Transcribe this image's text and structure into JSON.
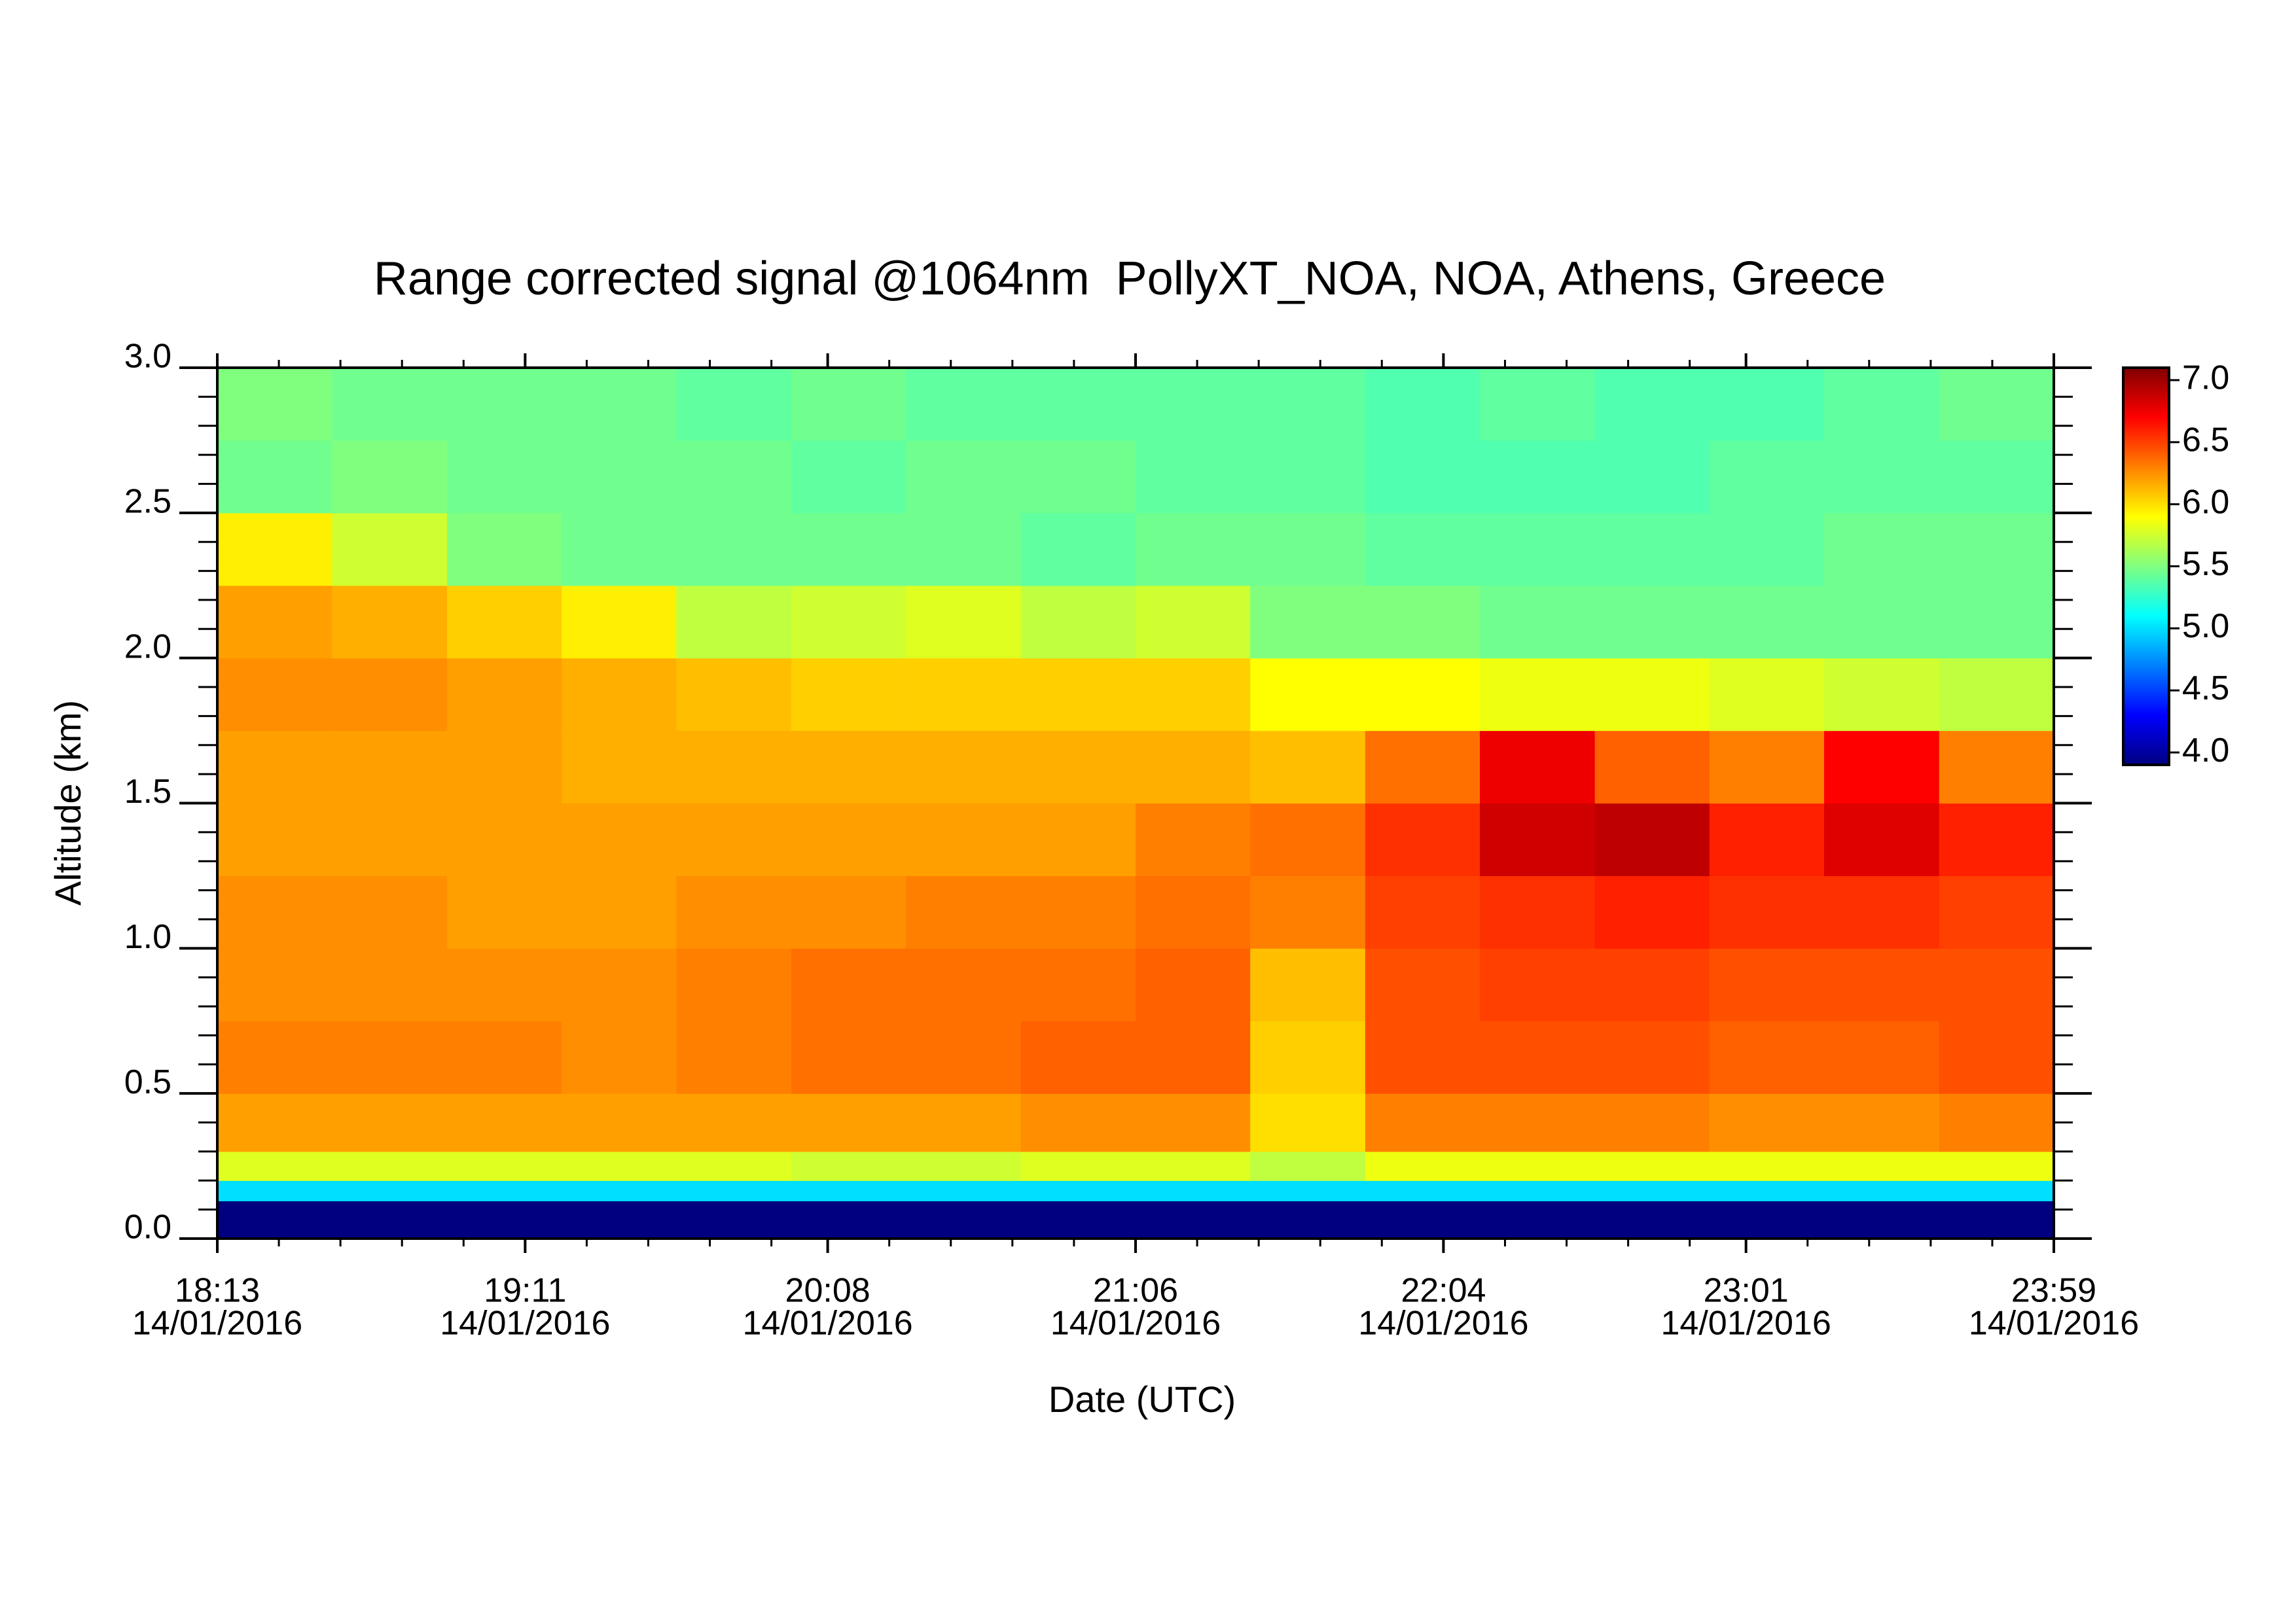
{
  "chart_data": {
    "type": "heatmap",
    "title": "Range corrected signal @1064nm  PollyXT_NOA, NOA, Athens, Greece",
    "x_label": "Date (UTC)",
    "y_label": "Altitude (km)",
    "colormap": "jet",
    "xlim": [
      18.2167,
      23.9833
    ],
    "xticks": [
      {
        "value": 18.2167,
        "label": "18:13",
        "date": "14/01/2016"
      },
      {
        "value": 19.1833,
        "label": "19:11",
        "date": "14/01/2016"
      },
      {
        "value": 20.1333,
        "label": "20:08",
        "date": "14/01/2016"
      },
      {
        "value": 21.1,
        "label": "21:06",
        "date": "14/01/2016"
      },
      {
        "value": 22.0667,
        "label": "22:04",
        "date": "14/01/2016"
      },
      {
        "value": 23.0167,
        "label": "23:01",
        "date": "14/01/2016"
      },
      {
        "value": 23.9833,
        "label": "23:59",
        "date": "14/01/2016"
      }
    ],
    "ylim": [
      0,
      3
    ],
    "yticks": [
      {
        "value": 0,
        "label": "0.0"
      },
      0.5,
      {
        "value": 1,
        "label": "1.0"
      },
      1.5,
      {
        "value": 2,
        "label": "2.0"
      },
      2.5,
      {
        "value": 3,
        "label": "3.0"
      }
    ],
    "zlim": [
      3.9,
      7.1
    ],
    "zticks": [
      {
        "value": 4,
        "label": "4.0"
      },
      4.5,
      {
        "value": 5,
        "label": "5.0"
      },
      5.5,
      {
        "value": 6,
        "label": "6.0"
      },
      6.5,
      {
        "value": 7,
        "label": "7.0"
      }
    ],
    "xbins": [
      18.2167,
      18.577,
      18.938,
      19.298,
      19.658,
      20.019,
      20.379,
      20.74,
      21.1,
      21.46,
      21.821,
      22.181,
      22.542,
      22.902,
      23.262,
      23.623,
      23.9833
    ],
    "ybins": [
      0,
      0.13,
      0.2,
      0.3,
      0.5,
      0.75,
      1.0,
      1.25,
      1.5,
      1.75,
      2.0,
      2.25,
      2.5,
      2.75,
      3.0
    ],
    "z": [
      [
        3.9,
        3.9,
        3.9,
        3.9,
        3.9,
        3.9,
        3.9,
        3.9,
        3.9,
        3.9,
        3.9,
        3.9,
        3.9,
        3.9,
        3.9,
        3.9
      ],
      [
        5.0,
        5.0,
        5.0,
        5.0,
        5.0,
        5.0,
        5.0,
        5.0,
        5.0,
        5.0,
        5.0,
        5.0,
        5.0,
        5.0,
        5.0,
        5.0
      ],
      [
        5.8,
        5.8,
        5.8,
        5.8,
        5.8,
        5.75,
        5.75,
        5.8,
        5.8,
        5.7,
        5.85,
        5.85,
        5.85,
        5.85,
        5.85,
        5.85
      ],
      [
        6.2,
        6.2,
        6.2,
        6.2,
        6.2,
        6.2,
        6.2,
        6.25,
        6.25,
        6.0,
        6.3,
        6.3,
        6.3,
        6.25,
        6.25,
        6.3
      ],
      [
        6.3,
        6.3,
        6.3,
        6.25,
        6.3,
        6.35,
        6.35,
        6.4,
        6.4,
        6.05,
        6.45,
        6.45,
        6.45,
        6.4,
        6.4,
        6.45
      ],
      [
        6.25,
        6.25,
        6.25,
        6.25,
        6.3,
        6.35,
        6.35,
        6.35,
        6.4,
        6.1,
        6.45,
        6.5,
        6.5,
        6.45,
        6.45,
        6.45
      ],
      [
        6.25,
        6.25,
        6.2,
        6.2,
        6.25,
        6.25,
        6.3,
        6.3,
        6.35,
        6.3,
        6.5,
        6.55,
        6.6,
        6.55,
        6.55,
        6.5
      ],
      [
        6.2,
        6.2,
        6.2,
        6.2,
        6.2,
        6.2,
        6.2,
        6.2,
        6.3,
        6.35,
        6.55,
        6.85,
        6.9,
        6.6,
        6.8,
        6.6
      ],
      [
        6.2,
        6.2,
        6.2,
        6.15,
        6.15,
        6.15,
        6.15,
        6.15,
        6.15,
        6.1,
        6.35,
        6.75,
        6.4,
        6.3,
        6.7,
        6.3
      ],
      [
        6.25,
        6.25,
        6.2,
        6.15,
        6.1,
        6.05,
        6.05,
        6.05,
        6.05,
        5.9,
        5.9,
        5.85,
        5.85,
        5.8,
        5.75,
        5.7
      ],
      [
        6.2,
        6.15,
        6.05,
        5.95,
        5.7,
        5.75,
        5.8,
        5.7,
        5.75,
        5.5,
        5.5,
        5.45,
        5.45,
        5.45,
        5.45,
        5.45
      ],
      [
        5.95,
        5.75,
        5.5,
        5.45,
        5.45,
        5.45,
        5.45,
        5.4,
        5.45,
        5.45,
        5.4,
        5.4,
        5.4,
        5.4,
        5.45,
        5.45
      ],
      [
        5.45,
        5.5,
        5.45,
        5.45,
        5.45,
        5.4,
        5.45,
        5.45,
        5.4,
        5.4,
        5.35,
        5.35,
        5.35,
        5.4,
        5.4,
        5.4
      ],
      [
        5.5,
        5.45,
        5.45,
        5.45,
        5.4,
        5.45,
        5.4,
        5.4,
        5.4,
        5.4,
        5.35,
        5.4,
        5.35,
        5.35,
        5.4,
        5.45
      ]
    ]
  }
}
